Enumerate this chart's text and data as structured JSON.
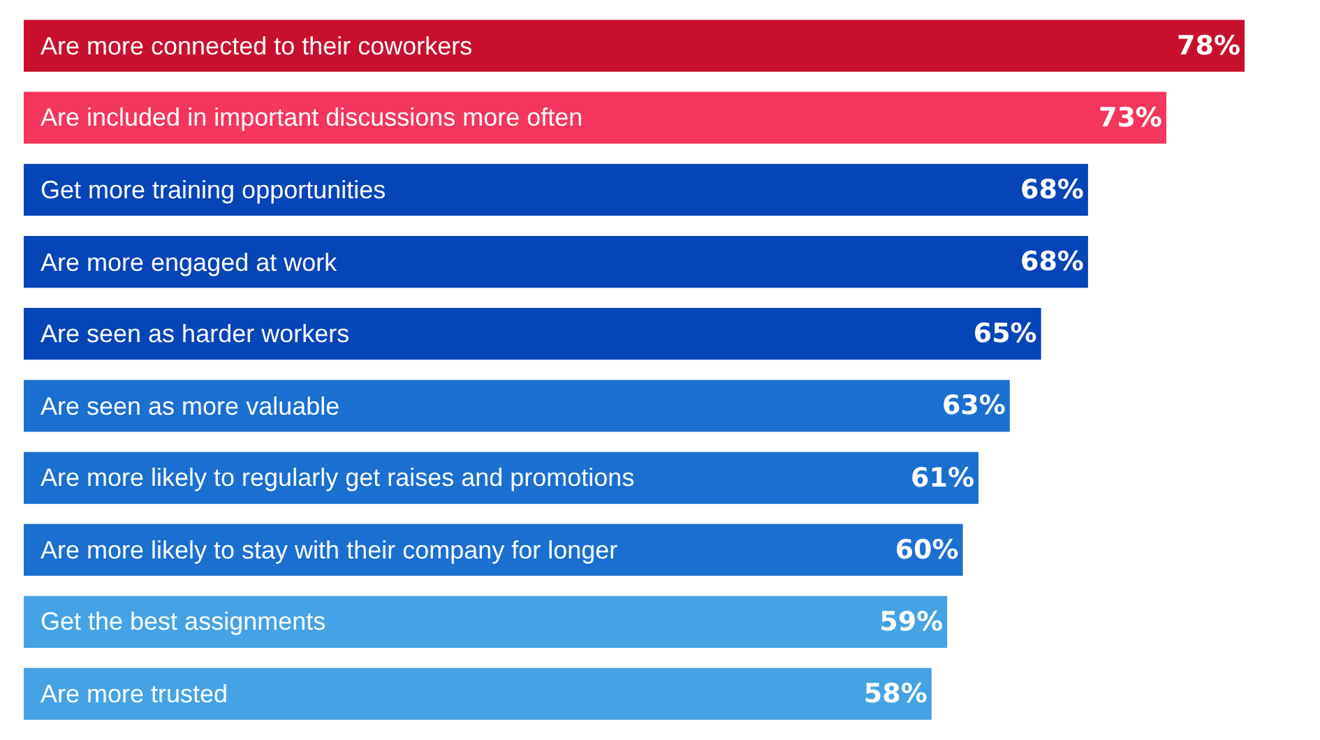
{
  "chart_data": {
    "type": "bar",
    "orientation": "horizontal",
    "tick_labels": false,
    "legend": false,
    "categories": [
      "Are more connected to their coworkers",
      "Are included in important discussions more often",
      "Get more training opportunities",
      "Are more engaged at work",
      "Are seen as harder workers",
      "Are seen as more valuable",
      "Are more likely to regularly get raises and promotions",
      "Are more likely to stay with their company for longer",
      "Get the best assignments",
      "Are more trusted"
    ],
    "values": [
      78,
      73,
      68,
      68,
      65,
      63,
      61,
      60,
      59,
      58
    ],
    "value_labels": [
      "78%",
      "73%",
      "68%",
      "68%",
      "65%",
      "63%",
      "61%",
      "60%",
      "59%",
      "58%"
    ],
    "colors": [
      "#c8102e",
      "#f5365c",
      "#0645b8",
      "#0645b8",
      "#0645b8",
      "#1a6fd0",
      "#1a6fd0",
      "#1a6fd0",
      "#45a3e5",
      "#45a3e5"
    ]
  }
}
